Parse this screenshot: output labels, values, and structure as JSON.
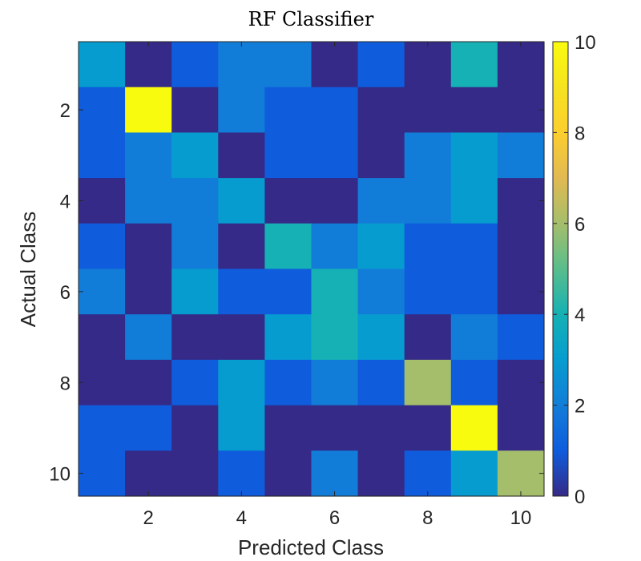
{
  "chart_data": {
    "type": "heatmap",
    "title": "RF Classifier",
    "xlabel": "Predicted Class",
    "ylabel": "Actual Class",
    "x_categories": [
      1,
      2,
      3,
      4,
      5,
      6,
      7,
      8,
      9,
      10
    ],
    "y_categories": [
      1,
      2,
      3,
      4,
      5,
      6,
      7,
      8,
      9,
      10
    ],
    "x_ticks": [
      2,
      4,
      6,
      8,
      10
    ],
    "y_ticks": [
      2,
      4,
      6,
      8,
      10
    ],
    "values": [
      [
        3,
        0,
        1,
        2,
        2,
        0,
        1,
        0,
        4,
        0
      ],
      [
        1,
        10,
        0,
        2,
        1,
        1,
        0,
        0,
        0,
        0
      ],
      [
        1,
        2,
        3,
        0,
        1,
        1,
        0,
        2,
        3,
        2
      ],
      [
        0,
        2,
        2,
        3,
        0,
        0,
        2,
        2,
        3,
        0
      ],
      [
        1,
        0,
        2,
        0,
        4,
        2,
        3,
        1,
        1,
        0
      ],
      [
        2,
        0,
        3,
        1,
        1,
        4,
        2,
        1,
        1,
        0
      ],
      [
        0,
        2,
        0,
        0,
        3,
        4,
        3,
        0,
        2,
        1
      ],
      [
        0,
        0,
        1,
        3,
        1,
        2,
        1,
        6,
        1,
        0
      ],
      [
        1,
        1,
        0,
        3,
        0,
        0,
        0,
        0,
        10,
        0
      ],
      [
        1,
        0,
        0,
        1,
        0,
        2,
        0,
        1,
        3,
        6
      ]
    ],
    "colorbar": {
      "range": [
        0,
        10
      ],
      "ticks": [
        0,
        2,
        4,
        6,
        8,
        10
      ],
      "colormap": "parula",
      "placement": "right"
    },
    "grid": false
  }
}
